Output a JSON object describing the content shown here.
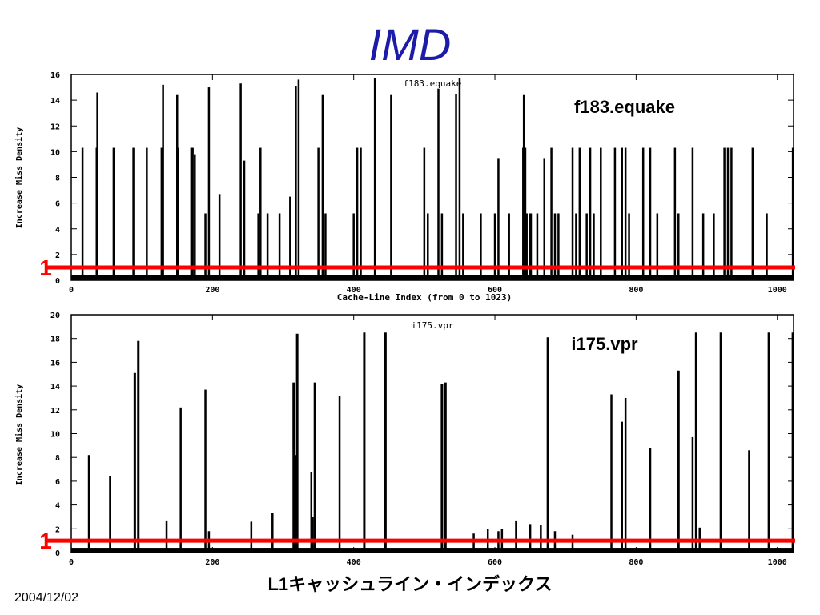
{
  "slide": {
    "title": "IMD",
    "date": "2004/12/02",
    "xlabel_jp": "L1キャッシュライン・インデックス"
  },
  "chart_data": [
    {
      "type": "bar",
      "title": "f183.equake",
      "inner_title": "f183.equake",
      "ylabel": "Increase Miss Density",
      "xlabel": "Cache-Line Index (from 0 to 1023)",
      "xlim": [
        0,
        1023
      ],
      "ylim": [
        0,
        16
      ],
      "xticks": [
        "0",
        "200",
        "400",
        "600",
        "800",
        "1000"
      ],
      "yticks": [
        "0",
        "2",
        "4",
        "6",
        "8",
        "10",
        "12",
        "14",
        "16"
      ],
      "threshold": 1,
      "threshold_label": "1",
      "threshold_color": "#ff0000",
      "x": [
        16,
        36,
        37,
        60,
        88,
        107,
        128,
        130,
        150,
        151,
        170,
        172,
        175,
        190,
        195,
        210,
        240,
        245,
        265,
        268,
        278,
        295,
        310,
        318,
        322,
        350,
        356,
        360,
        400,
        405,
        410,
        430,
        453,
        500,
        505,
        520,
        525,
        545,
        550,
        555,
        580,
        600,
        605,
        620,
        640,
        641,
        643,
        645,
        650,
        651,
        660,
        670,
        680,
        685,
        690,
        710,
        715,
        720,
        730,
        735,
        740,
        750,
        770,
        780,
        785,
        790,
        810,
        820,
        830,
        855,
        860,
        880,
        895,
        910,
        925,
        930,
        935,
        965,
        985,
        1022
      ],
      "values": [
        10.3,
        10.3,
        14.6,
        10.3,
        10.3,
        10.3,
        10.3,
        15.2,
        14.4,
        10.3,
        10.3,
        10.3,
        9.8,
        5.2,
        15.0,
        6.7,
        15.3,
        9.3,
        5.2,
        10.3,
        5.2,
        5.2,
        6.5,
        15.1,
        15.6,
        10.3,
        14.4,
        5.2,
        5.2,
        10.3,
        10.3,
        15.7,
        14.4,
        10.3,
        5.2,
        14.9,
        5.2,
        14.5,
        15.7,
        5.2,
        5.2,
        5.2,
        9.5,
        5.2,
        10.3,
        14.4,
        10.3,
        5.2,
        5.2,
        5.2,
        5.2,
        9.5,
        10.3,
        5.2,
        5.2,
        10.3,
        5.2,
        10.3,
        5.2,
        10.3,
        5.2,
        10.3,
        10.3,
        10.3,
        10.3,
        5.2,
        10.3,
        10.3,
        5.2,
        10.3,
        5.2,
        10.3,
        5.2,
        5.2,
        10.3,
        10.3,
        10.3,
        10.3,
        5.2,
        10.3
      ]
    },
    {
      "type": "bar",
      "title": "i175.vpr",
      "inner_title": "i175.vpr",
      "ylabel": "Increase Miss Density",
      "xlabel": "",
      "xlim": [
        0,
        1023
      ],
      "ylim": [
        0,
        20
      ],
      "xticks": [
        "0",
        "200",
        "400",
        "600",
        "800",
        "1000"
      ],
      "yticks": [
        "0",
        "2",
        "4",
        "6",
        "8",
        "10",
        "12",
        "14",
        "16",
        "18",
        "20"
      ],
      "threshold": 1,
      "threshold_label": "1",
      "threshold_color": "#ff0000",
      "x": [
        25,
        55,
        90,
        95,
        135,
        155,
        190,
        195,
        255,
        285,
        315,
        318,
        320,
        340,
        342,
        345,
        380,
        415,
        445,
        525,
        530,
        570,
        590,
        605,
        610,
        630,
        650,
        665,
        675,
        685,
        710,
        765,
        780,
        785,
        820,
        860,
        880,
        885,
        890,
        920,
        960,
        988,
        1022
      ],
      "values": [
        8.2,
        6.4,
        15.1,
        17.8,
        2.7,
        12.2,
        13.7,
        1.8,
        2.6,
        3.3,
        14.3,
        8.2,
        18.4,
        6.8,
        3.0,
        14.3,
        13.2,
        18.5,
        18.5,
        14.2,
        14.3,
        1.6,
        2.0,
        1.8,
        2.0,
        2.7,
        2.4,
        2.3,
        18.1,
        1.8,
        1.5,
        13.3,
        11.0,
        13.0,
        8.8,
        15.3,
        9.7,
        18.5,
        2.1,
        18.5,
        8.6,
        18.5,
        18.5
      ]
    }
  ]
}
